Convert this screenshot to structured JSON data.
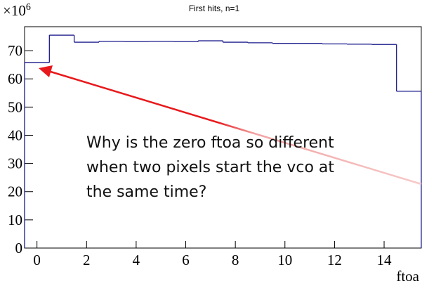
{
  "chart_data": {
    "type": "histogram",
    "title": "First hits, n=1",
    "x_label": "ftoa",
    "y_multiplier": {
      "base": "×10",
      "exponent": "6"
    },
    "bins": [
      -0.5,
      0.5,
      1.5,
      2.5,
      3.5,
      4.5,
      5.5,
      6.5,
      7.5,
      8.5,
      9.5,
      10.5,
      11.5,
      12.5,
      13.5,
      14.5,
      15.5
    ],
    "values": [
      65.8,
      75.5,
      73.0,
      73.3,
      73.2,
      73.3,
      73.2,
      73.5,
      73.0,
      72.8,
      72.6,
      72.6,
      72.4,
      72.3,
      72.2,
      55.6
    ],
    "color": "#1a1a8c",
    "xlim": [
      -0.5,
      15.5
    ],
    "xticks": [
      0,
      2,
      4,
      6,
      8,
      10,
      12,
      14
    ],
    "ylim": [
      0,
      78.5
    ],
    "yticks": [
      0,
      10,
      20,
      30,
      40,
      50,
      60,
      70
    ],
    "annotation": {
      "lines": [
        "Why is the zero ftoa so different",
        "when two pixels start the vco at",
        "the same time?"
      ],
      "arrow_color": "#e8191c"
    }
  }
}
